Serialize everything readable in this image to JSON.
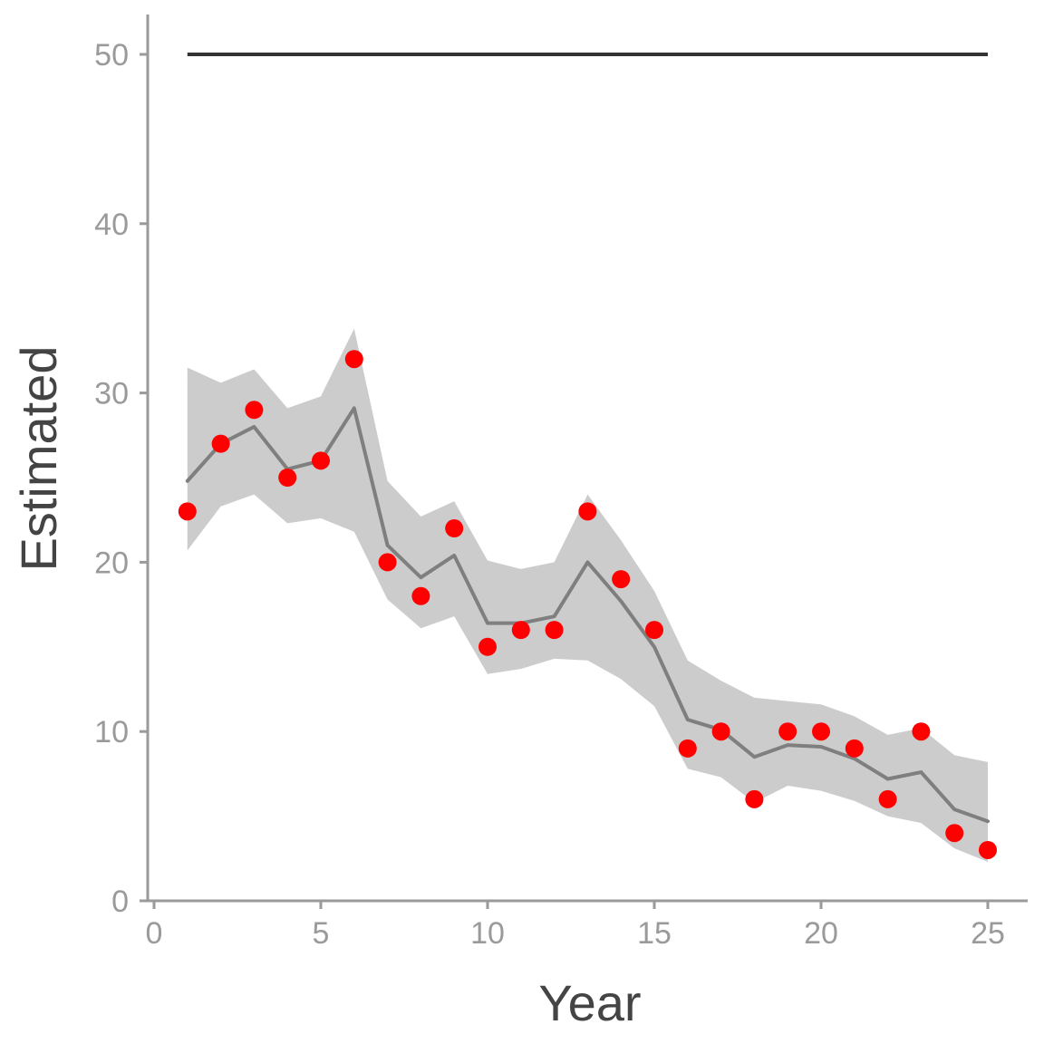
{
  "chart_data": {
    "type": "line",
    "title": "",
    "xlabel": "Year",
    "ylabel": "Estimated",
    "xlim": [
      0,
      26
    ],
    "ylim": [
      0,
      52
    ],
    "x_ticks": [
      0,
      5,
      10,
      15,
      20,
      25
    ],
    "y_ticks": [
      0,
      10,
      20,
      30,
      40,
      50
    ],
    "grid": false,
    "legend": "none",
    "x": [
      1,
      2,
      3,
      4,
      5,
      6,
      7,
      8,
      9,
      10,
      11,
      12,
      13,
      14,
      15,
      16,
      17,
      18,
      19,
      20,
      21,
      22,
      23,
      24,
      25
    ],
    "observed": [
      23,
      27,
      29,
      25,
      26,
      32,
      20,
      18,
      22,
      15,
      16,
      16,
      23,
      19,
      16,
      9,
      10,
      6,
      10,
      10,
      9,
      6,
      10,
      4,
      3
    ],
    "estimate": [
      24.8,
      27,
      28,
      25.5,
      26,
      29.1,
      21,
      19.1,
      20.4,
      16.4,
      16.4,
      16.8,
      20,
      17.7,
      15,
      10.7,
      10.1,
      8.5,
      9.2,
      9.1,
      8.4,
      7.2,
      7.6,
      5.4,
      4.7
    ],
    "ci_lower": [
      20.7,
      23.3,
      24,
      22.3,
      22.6,
      21.8,
      17.8,
      16.1,
      16.8,
      13.4,
      13.7,
      14.3,
      14.2,
      13.1,
      11.5,
      7.8,
      7.3,
      5.8,
      6.8,
      6.5,
      5.9,
      5,
      4.6,
      3.1,
      2.3
    ],
    "ci_upper": [
      31.5,
      30.6,
      31.4,
      29.1,
      29.8,
      33.8,
      24.8,
      22.7,
      23.6,
      20.1,
      19.6,
      20,
      24,
      21.3,
      18.3,
      14.2,
      13,
      12,
      11.8,
      11.6,
      10.9,
      9.8,
      10.2,
      8.6,
      8.2
    ],
    "reference_line": {
      "y": 50,
      "x_range": [
        1,
        25
      ]
    },
    "colors": {
      "observed": "#ff0000",
      "estimate": "#7f7f7f",
      "band": "#cccccc",
      "reference": "#333333",
      "axis": "#9a9a9a",
      "tick_text": "#9a9a9a",
      "axis_title": "#444444"
    }
  }
}
